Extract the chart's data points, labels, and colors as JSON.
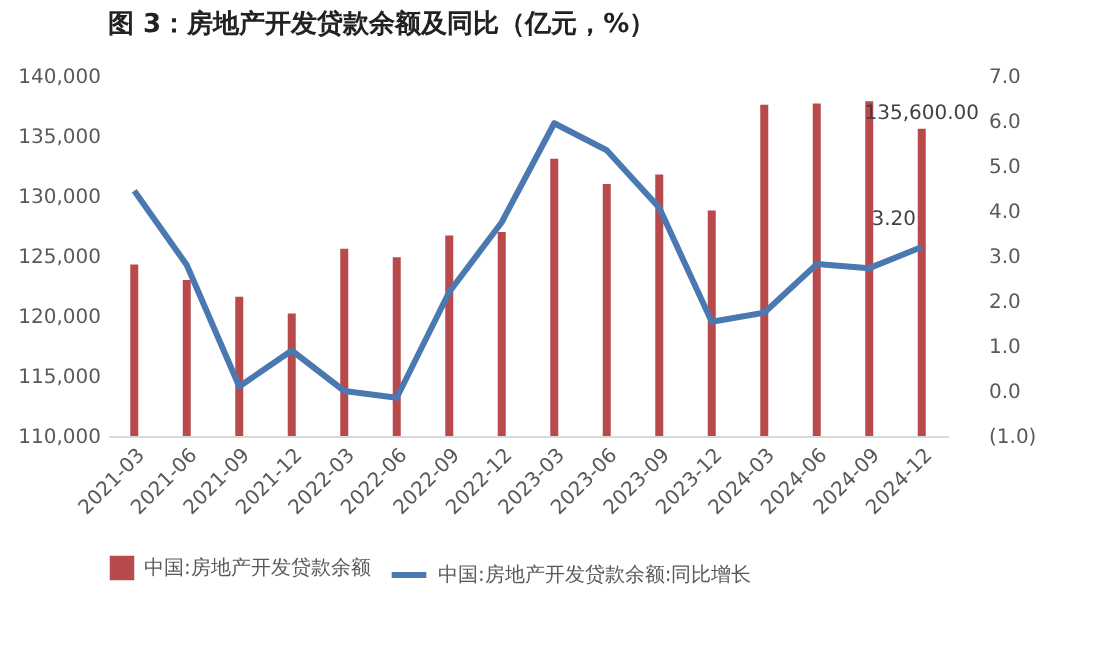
{
  "chart_data": {
    "type": "bar",
    "title": "图 3：房地产开发贷款余额及同比（亿元，%）",
    "categories": [
      "2021-03",
      "2021-06",
      "2021-09",
      "2021-12",
      "2022-03",
      "2022-06",
      "2022-09",
      "2022-12",
      "2023-03",
      "2023-06",
      "2023-09",
      "2023-12",
      "2024-03",
      "2024-06",
      "2024-09",
      "2024-12"
    ],
    "series": [
      {
        "name": "中国:房地产开发贷款余额",
        "color": "#b94a4c",
        "values": [
          124300,
          123000,
          121600,
          120200,
          125600,
          124900,
          126700,
          127000,
          133100,
          131000,
          131800,
          128800,
          137600,
          137700,
          137900,
          135600
        ],
        "value_labels": [
          null,
          null,
          null,
          null,
          null,
          null,
          null,
          null,
          null,
          null,
          null,
          null,
          null,
          null,
          null,
          "135,600.00"
        ]
      },
      {
        "name": "中国:房地产开发贷款余额:同比增长",
        "type": "line",
        "axis": "y2",
        "color": "#4a78b0",
        "values": [
          4.45,
          2.8,
          0.1,
          0.9,
          0.0,
          -0.15,
          2.2,
          3.75,
          5.95,
          5.35,
          4.07,
          1.54,
          1.74,
          2.82,
          2.73,
          3.2
        ],
        "value_labels": [
          null,
          null,
          null,
          null,
          null,
          null,
          null,
          null,
          null,
          null,
          null,
          null,
          null,
          null,
          null,
          "3.20"
        ]
      }
    ],
    "ylim": [
      110000,
      140000
    ],
    "yticks": [
      {
        "value": 110000,
        "label": "110,000"
      },
      {
        "value": 115000,
        "label": "115,000"
      },
      {
        "value": 120000,
        "label": "120,000"
      },
      {
        "value": 125000,
        "label": "125,000"
      },
      {
        "value": 130000,
        "label": "130,000"
      },
      {
        "value": 135000,
        "label": "135,000"
      },
      {
        "value": 140000,
        "label": "140,000"
      }
    ],
    "y2lim": [
      -1,
      7
    ],
    "y2ticks": [
      {
        "value": -1,
        "label": "(1.0)"
      },
      {
        "value": 0,
        "label": "0.0"
      },
      {
        "value": 1,
        "label": "1.0"
      },
      {
        "value": 2,
        "label": "2.0"
      },
      {
        "value": 3,
        "label": "3.0"
      },
      {
        "value": 4,
        "label": "4.0"
      },
      {
        "value": 5,
        "label": "5.0"
      },
      {
        "value": 6,
        "label": "6.0"
      },
      {
        "value": 7,
        "label": "7.0"
      }
    ],
    "legend": "bottom",
    "grid": false,
    "marker": "none"
  }
}
